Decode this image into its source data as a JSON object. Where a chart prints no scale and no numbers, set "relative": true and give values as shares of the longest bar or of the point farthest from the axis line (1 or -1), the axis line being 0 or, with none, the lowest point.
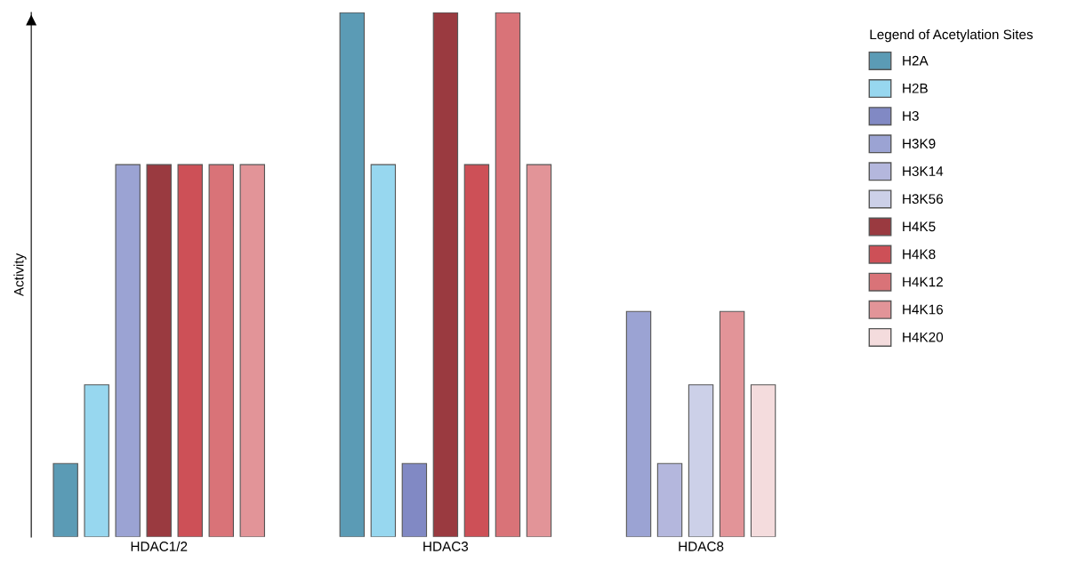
{
  "chart_data": {
    "type": "bar",
    "relative": true,
    "ylabel": "Activity",
    "legend_title": "Legend of Acetylation Sites",
    "legend": "right",
    "grid": false,
    "categories": [
      "HDAC1/2",
      "HDAC3",
      "HDAC8"
    ],
    "series": [
      {
        "name": "H2A",
        "color": "#5b9bb5",
        "values": [
          0.14,
          1,
          null
        ]
      },
      {
        "name": "H2B",
        "color": "#97d7ef",
        "values": [
          0.29,
          0.71,
          null
        ]
      },
      {
        "name": "H3",
        "color": "#8189c4",
        "values": [
          null,
          0.14,
          null
        ]
      },
      {
        "name": "H3K9",
        "color": "#9ba3d3",
        "values": [
          0.71,
          null,
          0.43
        ]
      },
      {
        "name": "H3K14",
        "color": "#b4b7dd",
        "values": [
          null,
          null,
          0.14
        ]
      },
      {
        "name": "H3K56",
        "color": "#ccd0e8",
        "values": [
          null,
          null,
          0.29
        ]
      },
      {
        "name": "H4K5",
        "color": "#9a3a40",
        "values": [
          0.71,
          1,
          null
        ]
      },
      {
        "name": "H4K8",
        "color": "#cd5057",
        "values": [
          0.71,
          0.71,
          null
        ]
      },
      {
        "name": "H4K12",
        "color": "#d97378",
        "values": [
          0.71,
          1,
          null
        ]
      },
      {
        "name": "H4K16",
        "color": "#e29498",
        "values": [
          0.71,
          0.71,
          0.43
        ]
      },
      {
        "name": "H4K20",
        "color": "#f4dcdd",
        "values": [
          null,
          null,
          0.29
        ]
      }
    ]
  }
}
